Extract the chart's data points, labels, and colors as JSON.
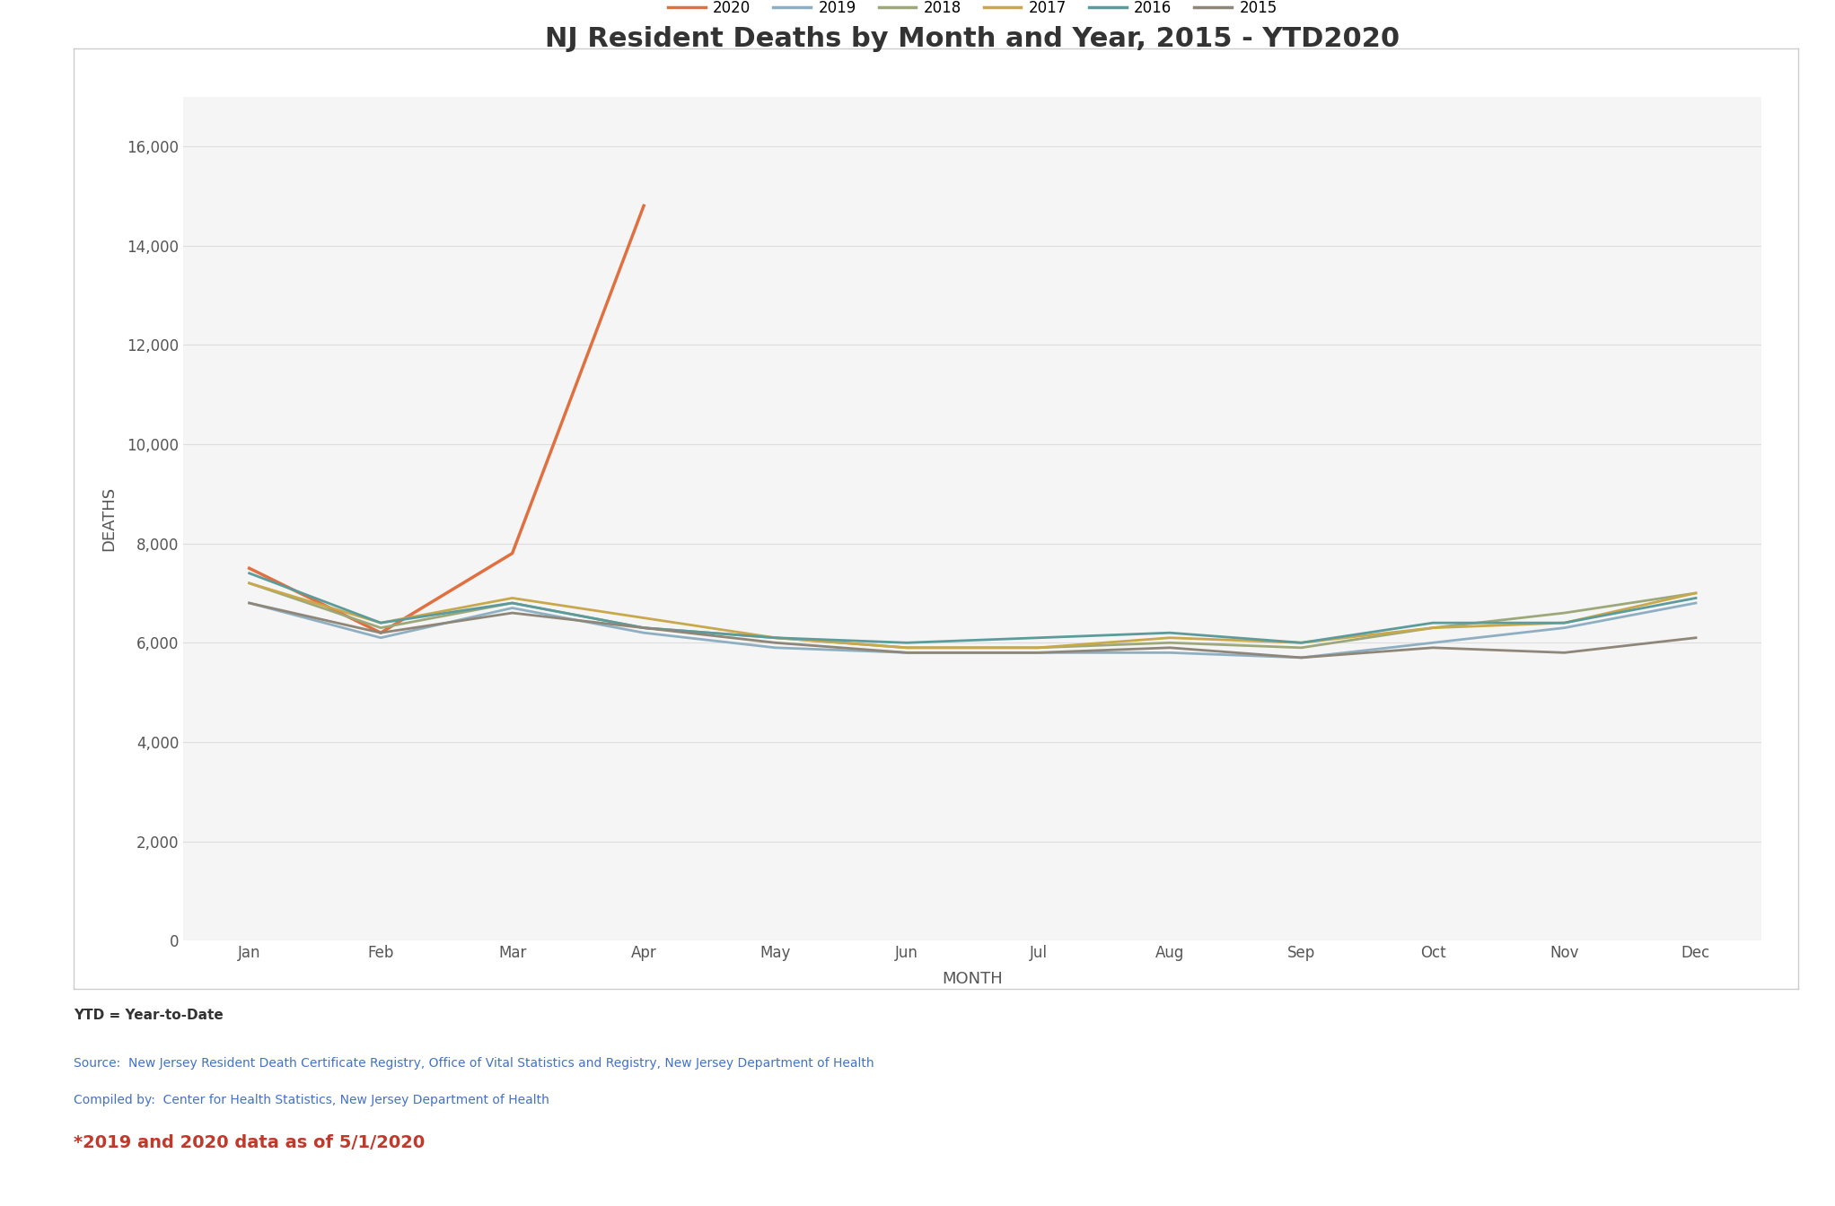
{
  "title": "NJ Resident Deaths by Month and Year, 2015 - YTD2020",
  "xlabel": "MONTH",
  "ylabel": "DEATHS",
  "months": [
    "Jan",
    "Feb",
    "Mar",
    "Apr",
    "May",
    "Jun",
    "Jul",
    "Aug",
    "Sep",
    "Oct",
    "Nov",
    "Dec"
  ],
  "series": {
    "2020": [
      7500,
      6200,
      7800,
      14800,
      null,
      null,
      null,
      null,
      null,
      null,
      null,
      null
    ],
    "2019": [
      6800,
      6100,
      6700,
      6200,
      5900,
      5800,
      5800,
      5800,
      5700,
      6000,
      6300,
      6800
    ],
    "2018": [
      7200,
      6300,
      6800,
      6300,
      6100,
      5900,
      5900,
      6000,
      5900,
      6300,
      6600,
      7000
    ],
    "2017": [
      7200,
      6400,
      6900,
      6500,
      6100,
      5900,
      5900,
      6100,
      6000,
      6300,
      6400,
      7000
    ],
    "2016": [
      7400,
      6400,
      6800,
      6300,
      6100,
      6000,
      6100,
      6200,
      6000,
      6400,
      6400,
      6900
    ],
    "2015": [
      6800,
      6200,
      6600,
      6300,
      6000,
      5800,
      5800,
      5900,
      5700,
      5900,
      5800,
      6100
    ]
  },
  "colors": {
    "2020": "#E07040",
    "2019": "#8EAFC2",
    "2018": "#9DA87A",
    "2017": "#C9A84C",
    "2016": "#5B9B9B",
    "2015": "#8E8678"
  },
  "linewidths": {
    "2020": 2.5,
    "2019": 2.0,
    "2018": 2.0,
    "2017": 2.0,
    "2016": 2.0,
    "2015": 2.0
  },
  "ylim": [
    0,
    17000
  ],
  "yticks": [
    0,
    2000,
    4000,
    6000,
    8000,
    10000,
    12000,
    14000,
    16000
  ],
  "background_color": "#FFFFFF",
  "plot_bg_color": "#F5F5F5",
  "grid_color": "#DDDDDD",
  "legend_order": [
    "2020",
    "2019",
    "2018",
    "2017",
    "2016",
    "2015"
  ],
  "annotation_ytd": "YTD = Year-to-Date",
  "annotation_source1": "Source:  New Jersey Resident Death Certificate Registry, Office of Vital Statistics and Registry, New Jersey Department of Health",
  "annotation_source2": "Compiled by:  Center for Health Statistics, New Jersey Department of Health",
  "annotation_note": "*2019 and 2020 data as of 5/1/2020",
  "source_color": "#4472C4",
  "note_color": "#C0392B",
  "title_fontsize": 22,
  "label_fontsize": 13,
  "tick_fontsize": 12,
  "legend_fontsize": 12
}
